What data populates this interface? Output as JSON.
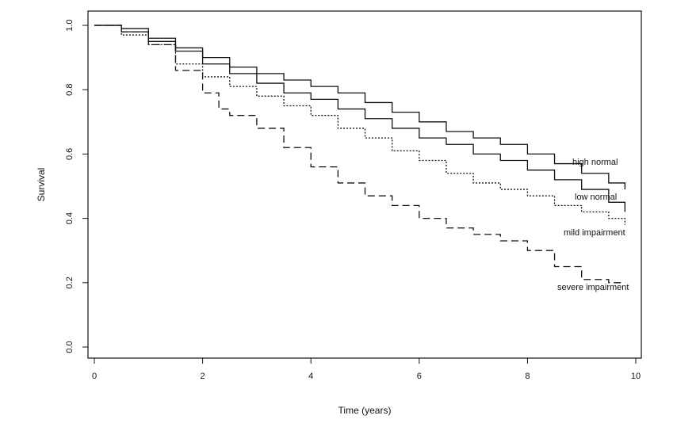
{
  "chart_data": {
    "type": "line",
    "title": "",
    "xlabel": "Time (years)",
    "ylabel": "Survival",
    "xlim": [
      0,
      10
    ],
    "ylim": [
      0.0,
      1.0
    ],
    "x_ticks": [
      "0",
      "2",
      "4",
      "6",
      "8",
      "10"
    ],
    "y_ticks": [
      "0.0",
      "0.2",
      "0.4",
      "0.6",
      "0.8",
      "1.0"
    ],
    "grid": false,
    "legend": "direct labels at line ends",
    "series": [
      {
        "name": "high normal",
        "style": "solid",
        "x": [
          0,
          0.5,
          1,
          1.5,
          2,
          2.5,
          3,
          3.5,
          4,
          4.5,
          5,
          5.5,
          6,
          6.5,
          7,
          7.5,
          8,
          8.5,
          9,
          9.5,
          9.8
        ],
        "y": [
          1.0,
          0.99,
          0.96,
          0.93,
          0.9,
          0.87,
          0.85,
          0.83,
          0.81,
          0.79,
          0.76,
          0.73,
          0.7,
          0.67,
          0.65,
          0.63,
          0.6,
          0.57,
          0.54,
          0.51,
          0.49
        ]
      },
      {
        "name": "low normal",
        "style": "solid",
        "x": [
          0,
          0.5,
          1,
          1.5,
          2,
          2.5,
          3,
          3.5,
          4,
          4.5,
          5,
          5.5,
          6,
          6.5,
          7,
          7.5,
          8,
          8.5,
          9,
          9.5,
          9.8
        ],
        "y": [
          1.0,
          0.98,
          0.95,
          0.92,
          0.88,
          0.85,
          0.82,
          0.79,
          0.77,
          0.74,
          0.71,
          0.68,
          0.65,
          0.63,
          0.6,
          0.58,
          0.55,
          0.52,
          0.49,
          0.45,
          0.42
        ]
      },
      {
        "name": "mild impairment",
        "style": "dotted",
        "x": [
          0,
          0.5,
          1,
          1.5,
          2,
          2.5,
          3,
          3.5,
          4,
          4.5,
          5,
          5.5,
          6,
          6.5,
          7,
          7.5,
          8,
          8.5,
          9,
          9.5,
          9.8
        ],
        "y": [
          1.0,
          0.97,
          0.94,
          0.88,
          0.84,
          0.81,
          0.78,
          0.75,
          0.72,
          0.68,
          0.65,
          0.61,
          0.58,
          0.54,
          0.51,
          0.49,
          0.47,
          0.44,
          0.42,
          0.4,
          0.38
        ]
      },
      {
        "name": "severe impairment",
        "style": "dashed",
        "x": [
          0,
          0.5,
          1,
          1.5,
          2,
          2.3,
          2.5,
          3,
          3.5,
          4,
          4.5,
          5,
          5.5,
          6,
          6.5,
          7,
          7.5,
          8,
          8.5,
          9,
          9.5,
          9.8
        ],
        "y": [
          1.0,
          0.98,
          0.94,
          0.86,
          0.79,
          0.74,
          0.72,
          0.68,
          0.62,
          0.56,
          0.51,
          0.47,
          0.44,
          0.4,
          0.37,
          0.35,
          0.33,
          0.3,
          0.25,
          0.21,
          0.2,
          0.2
        ]
      }
    ]
  }
}
